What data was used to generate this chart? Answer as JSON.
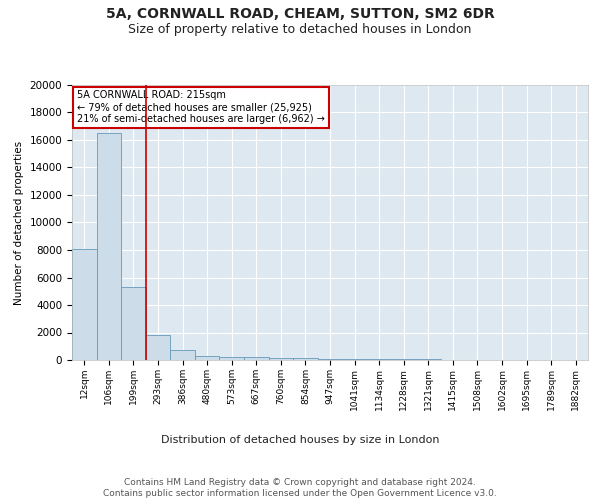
{
  "title1": "5A, CORNWALL ROAD, CHEAM, SUTTON, SM2 6DR",
  "title2": "Size of property relative to detached houses in London",
  "xlabel": "Distribution of detached houses by size in London",
  "ylabel": "Number of detached properties",
  "bin_labels": [
    "12sqm",
    "106sqm",
    "199sqm",
    "293sqm",
    "386sqm",
    "480sqm",
    "573sqm",
    "667sqm",
    "760sqm",
    "854sqm",
    "947sqm",
    "1041sqm",
    "1134sqm",
    "1228sqm",
    "1321sqm",
    "1415sqm",
    "1508sqm",
    "1602sqm",
    "1695sqm",
    "1789sqm",
    "1882sqm"
  ],
  "bar_heights": [
    8100,
    16500,
    5300,
    1850,
    700,
    300,
    225,
    200,
    175,
    150,
    100,
    80,
    60,
    50,
    40,
    30,
    25,
    20,
    15,
    10,
    8
  ],
  "bar_color": "#ccdce8",
  "bar_edge_color": "#6699bb",
  "vline_color": "#cc0000",
  "vline_x_index": 2,
  "annotation_box_color": "#ffffff",
  "annotation_border_color": "#cc0000",
  "annotation_text_line1": "5A CORNWALL ROAD: 215sqm",
  "annotation_text_line2": "← 79% of detached houses are smaller (25,925)",
  "annotation_text_line3": "21% of semi-detached houses are larger (6,962) →",
  "ylim": [
    0,
    20000
  ],
  "yticks": [
    0,
    2000,
    4000,
    6000,
    8000,
    10000,
    12000,
    14000,
    16000,
    18000,
    20000
  ],
  "background_color": "#dde8f0",
  "fig_background": "#ffffff",
  "footer_text": "Contains HM Land Registry data © Crown copyright and database right 2024.\nContains public sector information licensed under the Open Government Licence v3.0.",
  "title1_fontsize": 10,
  "title2_fontsize": 9,
  "footer_fontsize": 6.5
}
